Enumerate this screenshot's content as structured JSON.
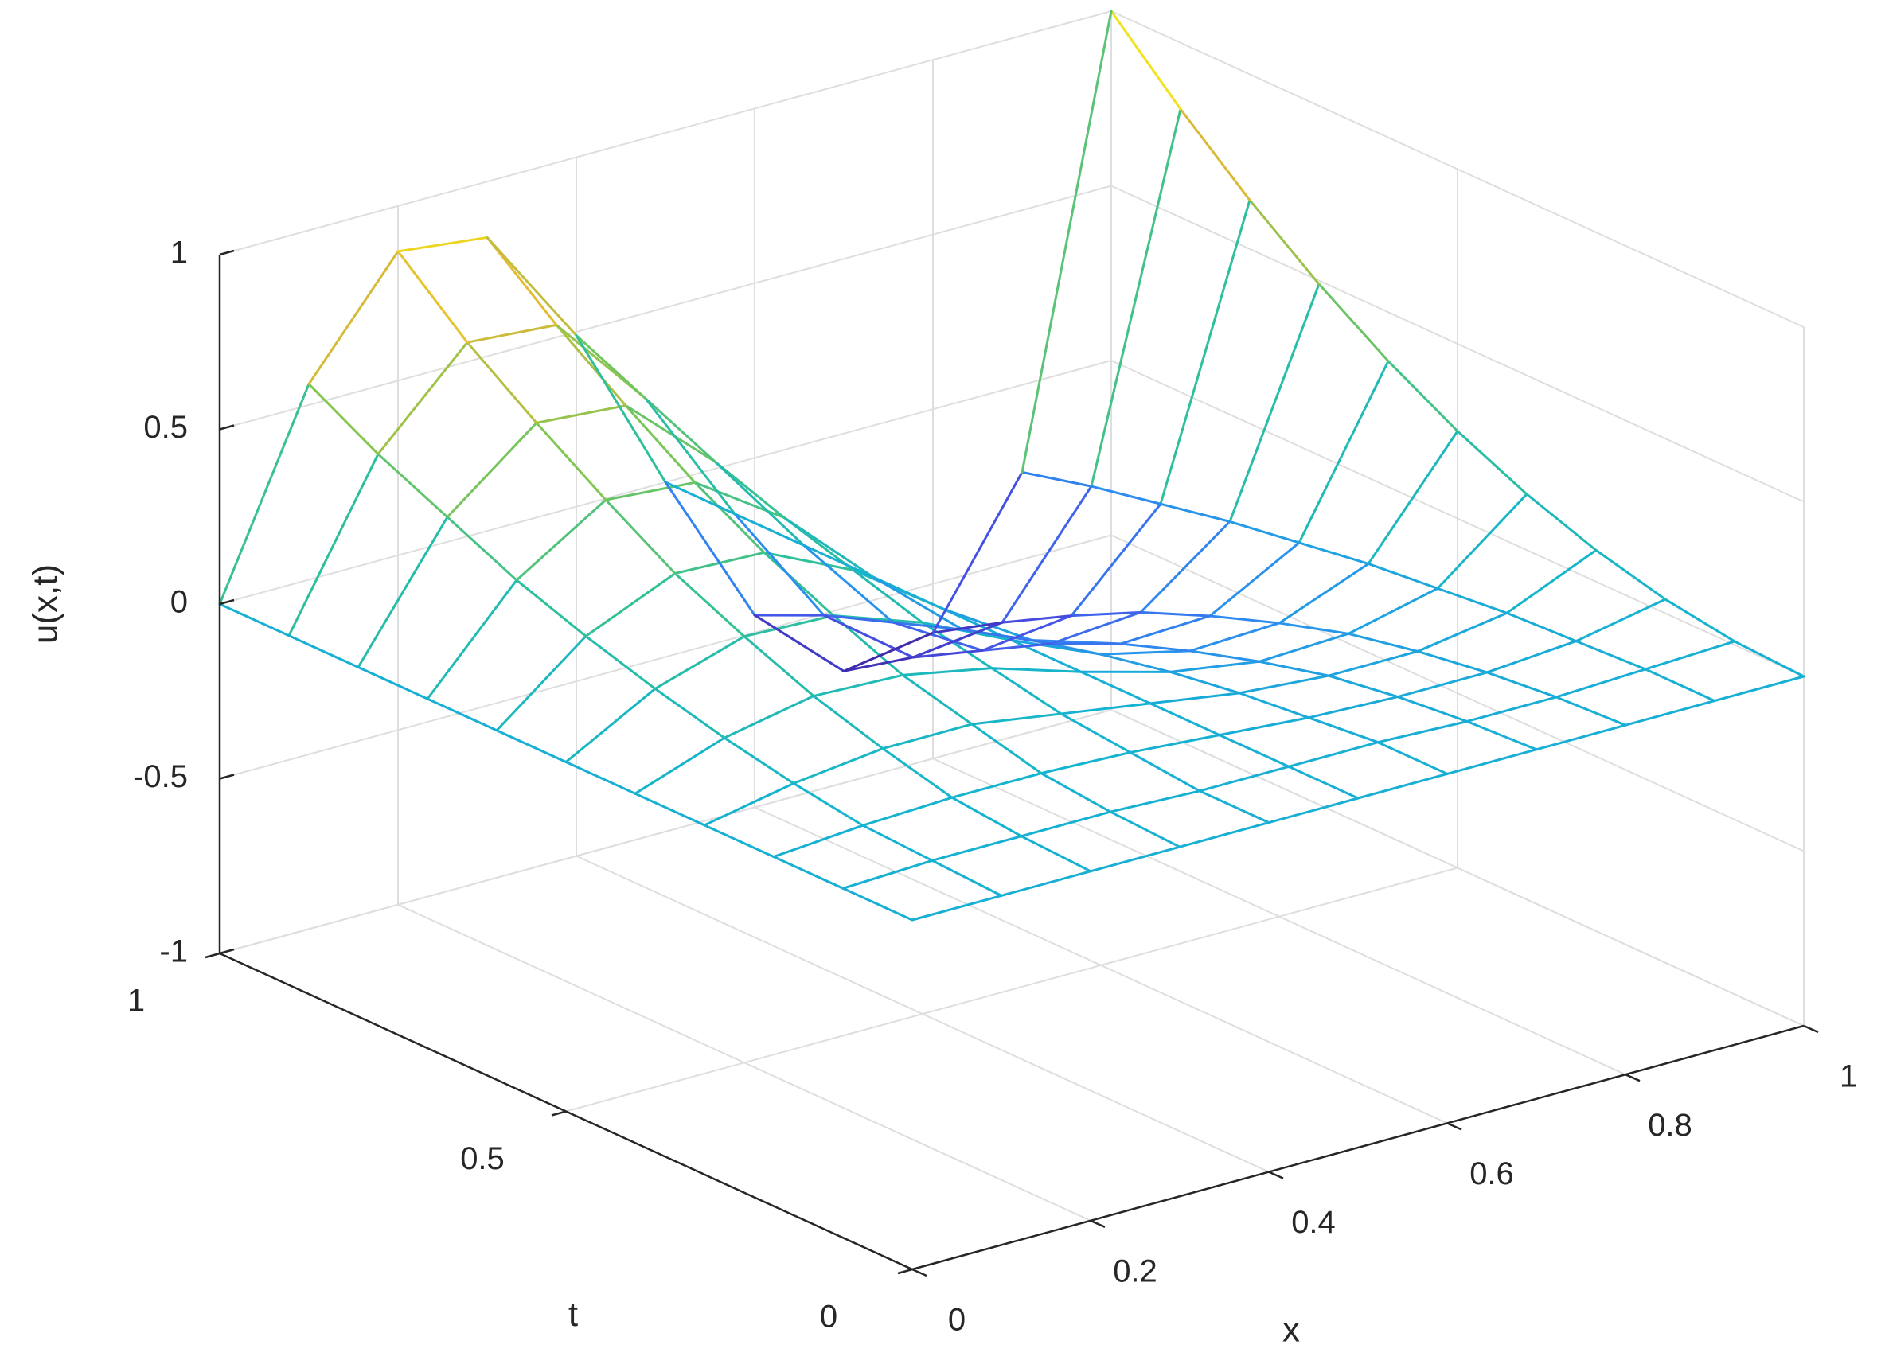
{
  "chart_data": {
    "type": "surface",
    "xlabel": "x",
    "ylabel": "t",
    "zlabel": "u(x,t)",
    "x": [
      0,
      0.1,
      0.2,
      0.3,
      0.4,
      0.5,
      0.6,
      0.7,
      0.8,
      0.9,
      1
    ],
    "y": [
      0,
      0.1,
      0.2,
      0.3,
      0.4,
      0.5,
      0.6,
      0.7,
      0.8,
      0.9,
      1
    ],
    "z": [
      [
        0,
        0,
        0,
        0,
        0,
        0,
        0,
        0,
        0,
        0,
        0
      ],
      [
        0,
        0.01,
        0.01,
        0.01,
        0,
        0,
        0,
        -0.01,
        -0.01,
        0,
        0.01
      ],
      [
        0,
        0.02,
        0.03,
        0.03,
        0.02,
        0,
        -0.02,
        -0.03,
        -0.03,
        -0.01,
        0.04
      ],
      [
        0,
        0.05,
        0.08,
        0.08,
        0.04,
        0,
        -0.04,
        -0.06,
        -0.06,
        -0.02,
        0.09
      ],
      [
        0,
        0.09,
        0.14,
        0.13,
        0.08,
        0,
        -0.07,
        -0.11,
        -0.1,
        -0.04,
        0.16
      ],
      [
        0,
        0.14,
        0.22,
        0.21,
        0.12,
        0,
        -0.11,
        -0.17,
        -0.16,
        -0.06,
        0.25
      ],
      [
        0,
        0.2,
        0.31,
        0.3,
        0.18,
        0,
        -0.16,
        -0.24,
        -0.23,
        -0.09,
        0.36
      ],
      [
        0,
        0.27,
        0.43,
        0.41,
        0.24,
        0,
        -0.22,
        -0.33,
        -0.31,
        -0.12,
        0.49
      ],
      [
        0,
        0.36,
        0.56,
        0.54,
        0.31,
        0,
        -0.29,
        -0.44,
        -0.41,
        -0.16,
        0.64
      ],
      [
        0,
        0.45,
        0.7,
        0.68,
        0.4,
        0,
        -0.36,
        -0.55,
        -0.52,
        -0.2,
        0.81
      ],
      [
        0,
        0.56,
        0.87,
        0.84,
        0.49,
        0,
        -0.45,
        -0.68,
        -0.64,
        -0.25,
        1
      ]
    ],
    "xlim": [
      0,
      1
    ],
    "ylim": [
      0,
      1
    ],
    "zlim": [
      -1,
      1
    ],
    "xticks": [
      0,
      0.2,
      0.4,
      0.6,
      0.8,
      1
    ],
    "yticks": [
      0,
      0.5,
      1
    ],
    "zticks": [
      -1,
      -0.5,
      0,
      0.5,
      1
    ],
    "grid": true,
    "colormap": "parula"
  }
}
